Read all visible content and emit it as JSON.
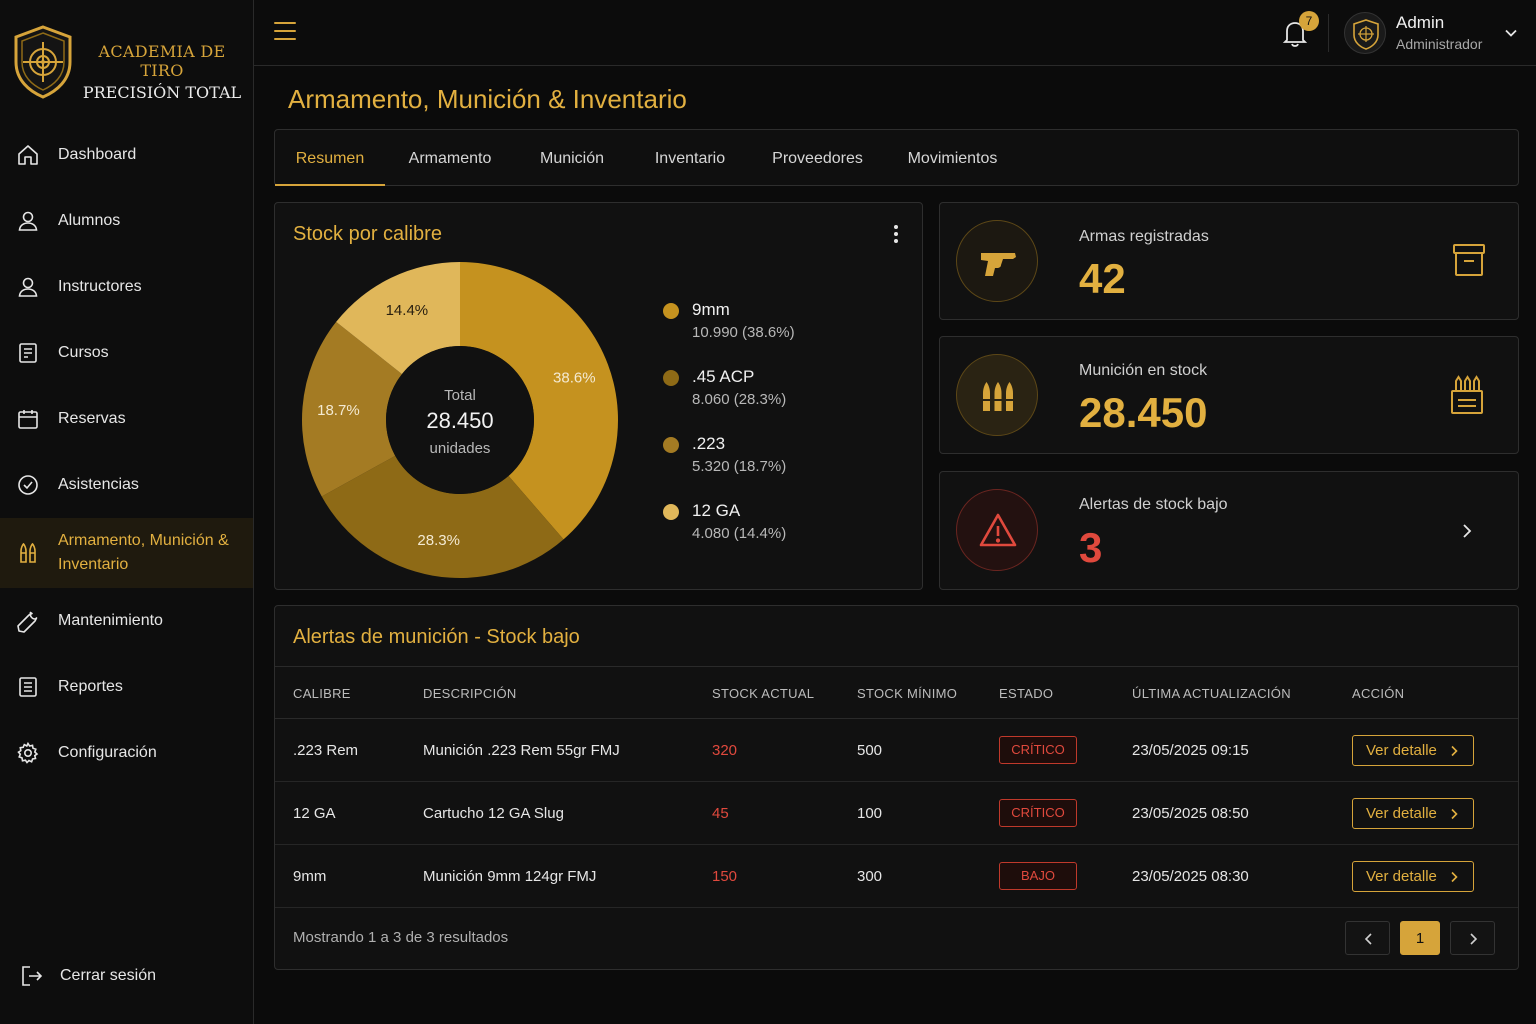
{
  "brand": {
    "line1": "ACADEMIA DE TIRO",
    "line2": "PRECISIÓN TOTAL"
  },
  "sidebar": {
    "items": [
      {
        "label": "Dashboard",
        "icon": "home-icon"
      },
      {
        "label": "Alumnos",
        "icon": "user-icon"
      },
      {
        "label": "Instructores",
        "icon": "user-icon"
      },
      {
        "label": "Cursos",
        "icon": "document-icon"
      },
      {
        "label": "Reservas",
        "icon": "calendar-icon"
      },
      {
        "label": "Asistencias",
        "icon": "check-circle-icon"
      },
      {
        "label": "Armamento, Munición & Inventario",
        "icon": "bullets-icon"
      },
      {
        "label": "Mantenimiento",
        "icon": "wrench-icon"
      },
      {
        "label": "Reportes",
        "icon": "report-icon"
      },
      {
        "label": "Configuración",
        "icon": "gear-icon"
      }
    ],
    "logout": "Cerrar sesión"
  },
  "topbar": {
    "notifications": "7",
    "user_name": "Admin",
    "user_role": "Administrador"
  },
  "page": {
    "title": "Armamento, Munición & Inventario"
  },
  "tabs": [
    "Resumen",
    "Armamento",
    "Munición",
    "Inventario",
    "Proveedores",
    "Movimientos"
  ],
  "stock_card": {
    "title": "Stock por calibre",
    "center_label": "Total",
    "center_value": "28.450",
    "center_unit": "unidades",
    "legend": [
      {
        "name": "9mm",
        "value": "10.990 (38.6%)"
      },
      {
        "name": ".45 ACP",
        "value": "8.060 (28.3%)"
      },
      {
        "name": ".223",
        "value": "5.320 (18.7%)"
      },
      {
        "name": "12 GA",
        "value": "4.080 (14.4%)"
      }
    ]
  },
  "chart_data": {
    "type": "pie",
    "title": "Stock por calibre",
    "categories": [
      "9mm",
      ".45 ACP",
      ".223",
      "12 GA"
    ],
    "values": [
      10990,
      8060,
      5320,
      4080
    ],
    "percent_labels": [
      "38.6%",
      "28.3%",
      "18.7%",
      "14.4%"
    ],
    "colors": [
      "#c5921f",
      "#8e6a16",
      "#a47b23",
      "#e0b75a"
    ],
    "donut": true,
    "legend": "right"
  },
  "stats": [
    {
      "label": "Armas registradas",
      "value": "42",
      "icon": "pistol-icon",
      "right_icon": "archive-icon",
      "color": "#e2b040"
    },
    {
      "label": "Munición en stock",
      "value": "28.450",
      "icon": "bullets-icon",
      "right_icon": "ammo-box-icon",
      "color": "#e2b040"
    },
    {
      "label": "Alertas de stock bajo",
      "value": "3",
      "icon": "warning-icon",
      "right_icon": "chevron-right-icon",
      "color": "#e0493d"
    }
  ],
  "alerts_table": {
    "title": "Alertas de munición - Stock bajo",
    "headers": [
      "CALIBRE",
      "DESCRIPCIÓN",
      "STOCK ACTUAL",
      "STOCK MÍNIMO",
      "ESTADO",
      "ÚLTIMA ACTUALIZACIÓN",
      "ACCIÓN"
    ],
    "rows": [
      {
        "calibre": ".223 Rem",
        "descripcion": "Munición .223 Rem 55gr FMJ",
        "actual": "320",
        "minimo": "500",
        "estado": "CRÍTICO",
        "fecha": "23/05/2025 09:15",
        "accion": "Ver detalle"
      },
      {
        "calibre": "12 GA",
        "descripcion": "Cartucho 12 GA Slug",
        "actual": "45",
        "minimo": "100",
        "estado": "CRÍTICO",
        "fecha": "23/05/2025 08:50",
        "accion": "Ver detalle"
      },
      {
        "calibre": "9mm",
        "descripcion": "Munición 9mm 124gr FMJ",
        "actual": "150",
        "minimo": "300",
        "estado": "BAJO",
        "fecha": "23/05/2025 08:30",
        "accion": "Ver detalle"
      }
    ],
    "footer": "Mostrando 1 a 3 de 3 resultados",
    "current_page": "1"
  },
  "colors": {
    "accent": "#d6a43a",
    "danger": "#e0493d",
    "background": "#0b0b0b"
  }
}
